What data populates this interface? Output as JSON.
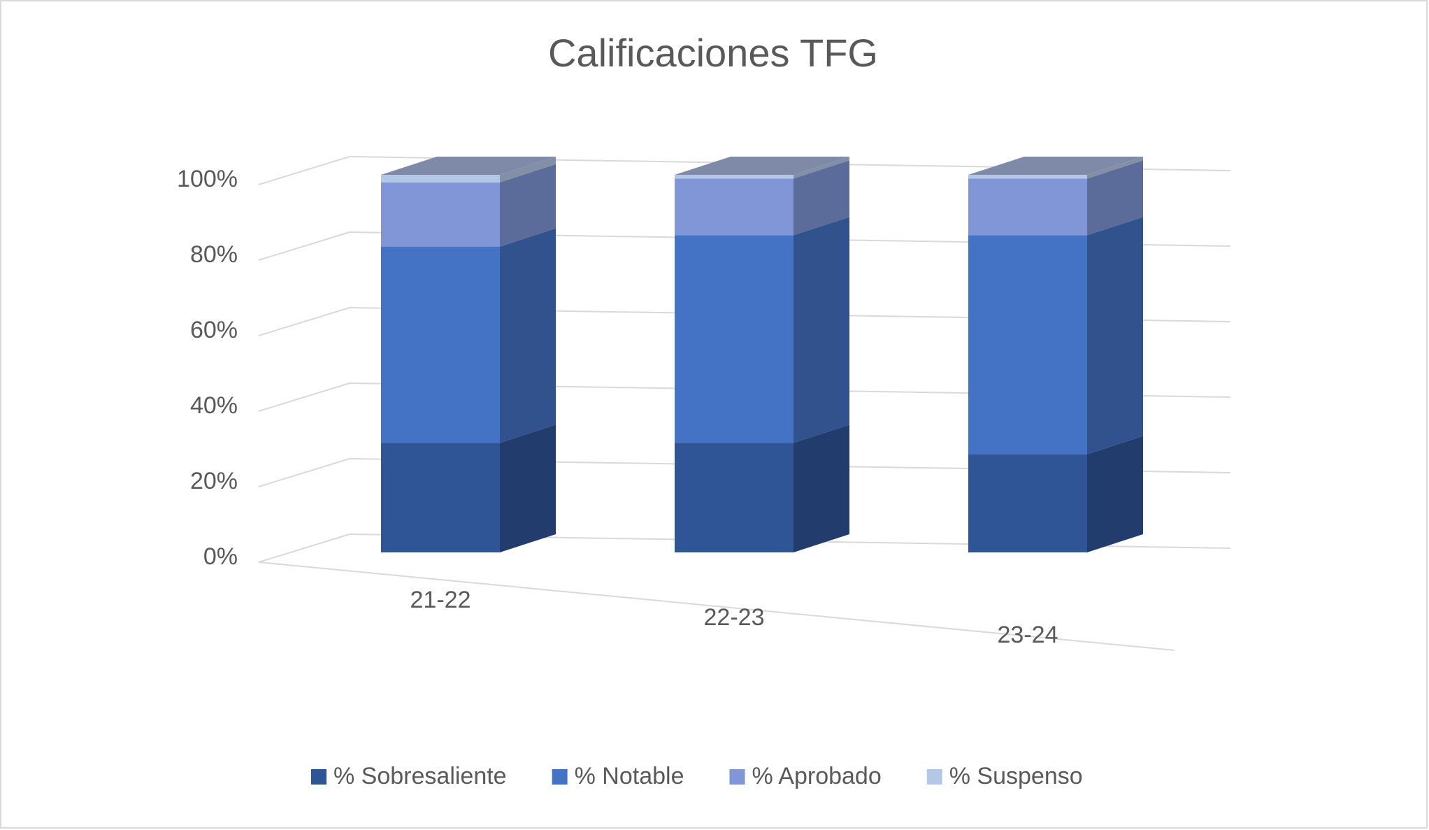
{
  "chart_data": {
    "type": "bar3d_stacked",
    "title": "Calificaciones TFG",
    "categories": [
      "21-22",
      "22-23",
      "23-24"
    ],
    "series": [
      {
        "name": "% Sobresaliente",
        "color": "#2f5597",
        "values": [
          29,
          29,
          26
        ]
      },
      {
        "name": "% Notable",
        "color": "#4472c4",
        "values": [
          52,
          55,
          58
        ]
      },
      {
        "name": "% Aprobado",
        "color": "#8096d6",
        "values": [
          17,
          15,
          15
        ]
      },
      {
        "name": "% Suspenso",
        "color": "#b4c7e7",
        "values": [
          2,
          1,
          1
        ]
      }
    ],
    "ylim": [
      0,
      100
    ],
    "yticks": [
      {
        "value": 0,
        "label": "0%"
      },
      {
        "value": 20,
        "label": "20%"
      },
      {
        "value": 40,
        "label": "40%"
      },
      {
        "value": 60,
        "label": "60%"
      },
      {
        "value": 80,
        "label": "80%"
      },
      {
        "value": 100,
        "label": "100%"
      }
    ],
    "grid": true,
    "legend": "bottom"
  }
}
